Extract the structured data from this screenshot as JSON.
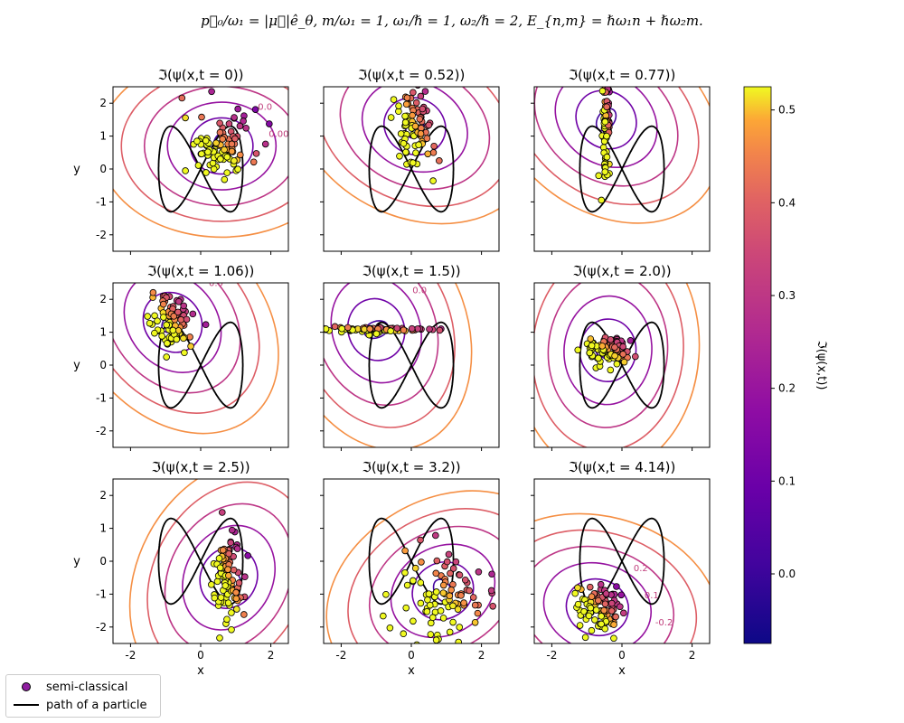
{
  "figure": {
    "suptitle": "p⃗₀/ω₁ = |μ⃗|ê_θ,  m/ω₁ = 1, ω₁/ℏ = 1, ω₂/ℏ = 2, E_{n,m} = ℏω₁n + ℏω₂m."
  },
  "legend": {
    "items": [
      {
        "label": "semi-classical",
        "marker": "scatter"
      },
      {
        "label": "path of a particle",
        "marker": "line"
      }
    ]
  },
  "colorbar": {
    "label": "ℑ(ψ(x,t))",
    "range": [
      -0.075,
      0.525
    ],
    "ticks": [
      "0.0",
      "0.1",
      "0.2",
      "0.3",
      "0.4",
      "0.5"
    ],
    "colormap": "plasma"
  },
  "chart_data": {
    "type": "scatter",
    "xlabel": "x",
    "ylabel": "y",
    "xlim": [
      -2.5,
      2.5
    ],
    "ylim": [
      -2.5,
      2.5
    ],
    "xticks": [
      -2,
      0,
      2
    ],
    "yticks": [
      -2,
      -1,
      0,
      1,
      2
    ],
    "path": {
      "kind": "lissajous",
      "ax": 1.2,
      "ay": 1.3,
      "wx": 1,
      "wy": 2
    },
    "panels": [
      {
        "title": "ℑ(ψ(x,t = 0))",
        "t": 0,
        "center": [
          0.6,
          0.7
        ],
        "spread": [
          0.55,
          0.5
        ],
        "contour_labels": [
          "0.0",
          "0.00"
        ]
      },
      {
        "title": "ℑ(ψ(x,t = 0.52))",
        "t": 0.52,
        "center": [
          0.1,
          1.3
        ],
        "spread": [
          0.3,
          0.7
        ],
        "contour_labels": []
      },
      {
        "title": "ℑ(ψ(x,t = 0.77))",
        "t": 0.77,
        "center": [
          -0.45,
          1.5
        ],
        "spread": [
          0.05,
          0.7
        ],
        "contour_labels": []
      },
      {
        "title": "ℑ(ψ(x,t = 1.06))",
        "t": 1.06,
        "center": [
          -0.8,
          1.3
        ],
        "spread": [
          0.3,
          0.4
        ],
        "contour_labels": [
          "0.0"
        ]
      },
      {
        "title": "ℑ(ψ(x,t = 1.5))",
        "t": 1.5,
        "center": [
          -1.0,
          1.08
        ],
        "spread": [
          0.9,
          0.04
        ],
        "contour_labels": [
          "0.0"
        ]
      },
      {
        "title": "ℑ(ψ(x,t = 2.0))",
        "t": 2.0,
        "center": [
          -0.4,
          0.45
        ],
        "spread": [
          0.35,
          0.25
        ],
        "contour_labels": []
      },
      {
        "title": "ℑ(ψ(x,t = 2.5))",
        "t": 2.5,
        "center": [
          0.8,
          -0.5
        ],
        "spread": [
          0.2,
          0.7
        ],
        "contour_labels": []
      },
      {
        "title": "ℑ(ψ(x,t = 3.2))",
        "t": 3.2,
        "center": [
          0.9,
          -0.9
        ],
        "spread": [
          0.7,
          0.7
        ],
        "contour_labels": []
      },
      {
        "title": "ℑ(ψ(x,t = 4.14))",
        "t": 4.14,
        "center": [
          -0.7,
          -1.4
        ],
        "spread": [
          0.3,
          0.35
        ],
        "contour_labels": [
          "0.2",
          "0.1",
          "-0.2",
          "0.2"
        ]
      }
    ]
  }
}
